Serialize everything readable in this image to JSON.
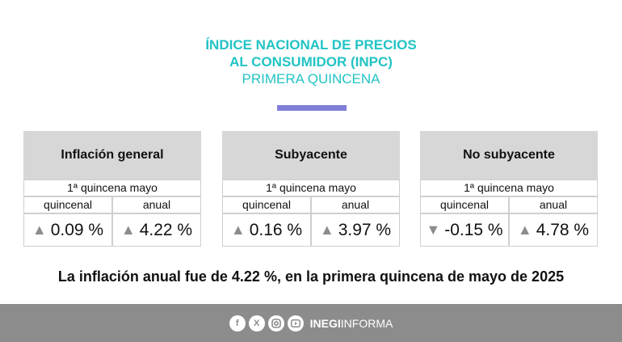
{
  "header": {
    "line1": "ÍNDICE NACIONAL DE PRECIOS",
    "line2": "AL CONSUMIDOR (INPC)",
    "line3": "PRIMERA QUINCENA"
  },
  "cards": [
    {
      "title": "Inflación general",
      "period": "1ª quincena mayo",
      "col1": "quincenal",
      "col2": "anual",
      "v1": {
        "arrow": "▲",
        "value": "0.09 %"
      },
      "v2": {
        "arrow": "▲",
        "value": "4.22 %"
      }
    },
    {
      "title": "Subyacente",
      "period": "1ª quincena mayo",
      "col1": "quincenal",
      "col2": "anual",
      "v1": {
        "arrow": "▲",
        "value": "0.16 %"
      },
      "v2": {
        "arrow": "▲",
        "value": "3.97 %"
      }
    },
    {
      "title": "No subyacente",
      "period": "1ª quincena mayo",
      "col1": "quincenal",
      "col2": "anual",
      "v1": {
        "arrow": "▼",
        "value": "-0.15 %"
      },
      "v2": {
        "arrow": "▲",
        "value": "4.78 %"
      }
    }
  ],
  "summary": "La inflación anual fue de 4.22 %, en la primera quincena de mayo de 2025",
  "footer": {
    "brand_bold": "INEGI",
    "brand_light": "INFORMA",
    "icons": [
      "facebook-icon",
      "x-icon",
      "instagram-icon",
      "youtube-icon"
    ]
  },
  "colors": {
    "accent": "#22c3c4",
    "bar": "#7f7fd9",
    "card": "#d7d7d7",
    "footer": "#8c8c8c"
  }
}
